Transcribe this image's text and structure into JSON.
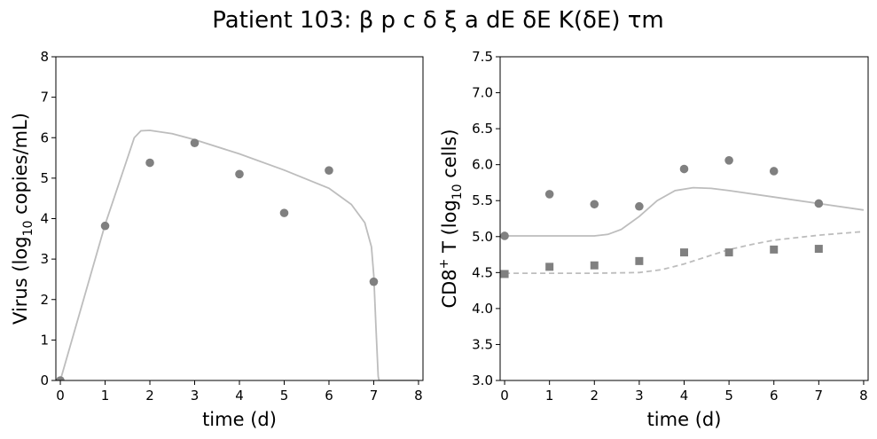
{
  "title": "Patient 103: β p c δ ξ a dE δE K(δE) τm",
  "colors": {
    "line": "#bdbdbd",
    "marker": "#808080",
    "axis": "#000000"
  },
  "chart_data": [
    {
      "type": "scatter",
      "xlabel": "time (d)",
      "ylabel": "Virus (log10 copies/mL)",
      "ylabel_parts": {
        "pre": "Virus (log",
        "sub": "10",
        "post": " copies/mL)"
      },
      "xlim": [
        -0.1,
        8.1
      ],
      "ylim": [
        0,
        8
      ],
      "xticks": [
        0,
        1,
        2,
        3,
        4,
        5,
        6,
        7,
        8
      ],
      "yticks": [
        0,
        1,
        2,
        3,
        4,
        5,
        6,
        7,
        8
      ],
      "ytick_labels": [
        "0",
        "1",
        "2",
        "3",
        "4",
        "5",
        "6",
        "7",
        "8"
      ],
      "series": [
        {
          "kind": "points",
          "marker": "circle",
          "x": [
            0,
            1,
            2,
            3,
            4,
            5,
            6,
            7
          ],
          "y": [
            0.0,
            3.82,
            5.38,
            5.87,
            5.1,
            4.14,
            5.19,
            2.44
          ]
        },
        {
          "kind": "line",
          "style": "solid",
          "x": [
            0,
            1,
            1.5,
            1.65,
            1.8,
            2.0,
            2.5,
            3,
            4,
            5,
            6,
            6.5,
            6.8,
            6.95,
            7.0,
            7.05,
            7.1,
            7.12,
            8.0
          ],
          "y": [
            0.0,
            3.85,
            5.5,
            6.0,
            6.17,
            6.18,
            6.1,
            5.95,
            5.6,
            5.2,
            4.75,
            4.35,
            3.9,
            3.3,
            2.6,
            1.3,
            0.1,
            0.0,
            0.0
          ]
        }
      ]
    },
    {
      "type": "scatter",
      "xlabel": "time (d)",
      "ylabel": "CD8+ T (log10 cells)",
      "ylabel_parts": {
        "pre": "CD8",
        "sup": "+",
        "mid": " T (log",
        "sub": "10",
        "post": " cells)"
      },
      "xlim": [
        -0.1,
        8.1
      ],
      "ylim": [
        3.0,
        7.5
      ],
      "xticks": [
        0,
        1,
        2,
        3,
        4,
        5,
        6,
        7,
        8
      ],
      "yticks": [
        3.0,
        3.5,
        4.0,
        4.5,
        5.0,
        5.5,
        6.0,
        6.5,
        7.0,
        7.5
      ],
      "ytick_labels": [
        "3.0",
        "3.5",
        "4.0",
        "4.5",
        "5.0",
        "5.5",
        "6.0",
        "6.5",
        "7.0",
        "7.5"
      ],
      "series": [
        {
          "kind": "points",
          "marker": "circle",
          "x": [
            0,
            1,
            2,
            3,
            4,
            5,
            6,
            7
          ],
          "y": [
            5.01,
            5.59,
            5.45,
            5.42,
            5.94,
            6.06,
            5.91,
            5.46
          ]
        },
        {
          "kind": "points",
          "marker": "square",
          "x": [
            0,
            1,
            2,
            3,
            4,
            5,
            6,
            7
          ],
          "y": [
            4.48,
            4.58,
            4.6,
            4.66,
            4.78,
            4.78,
            4.82,
            4.83
          ]
        },
        {
          "kind": "line",
          "style": "solid",
          "x": [
            0,
            1,
            2,
            2.3,
            2.6,
            3.0,
            3.4,
            3.8,
            4.2,
            4.6,
            5.0,
            6.0,
            7.0,
            8.0
          ],
          "y": [
            5.01,
            5.01,
            5.01,
            5.03,
            5.1,
            5.28,
            5.5,
            5.64,
            5.68,
            5.67,
            5.64,
            5.55,
            5.46,
            5.37
          ]
        },
        {
          "kind": "line",
          "style": "dashed",
          "x": [
            0,
            1,
            2,
            3,
            3.5,
            4.0,
            4.5,
            5.0,
            5.5,
            6.0,
            7.0,
            8.0
          ],
          "y": [
            4.49,
            4.49,
            4.49,
            4.5,
            4.54,
            4.62,
            4.72,
            4.82,
            4.89,
            4.95,
            5.02,
            5.07
          ]
        }
      ]
    }
  ]
}
